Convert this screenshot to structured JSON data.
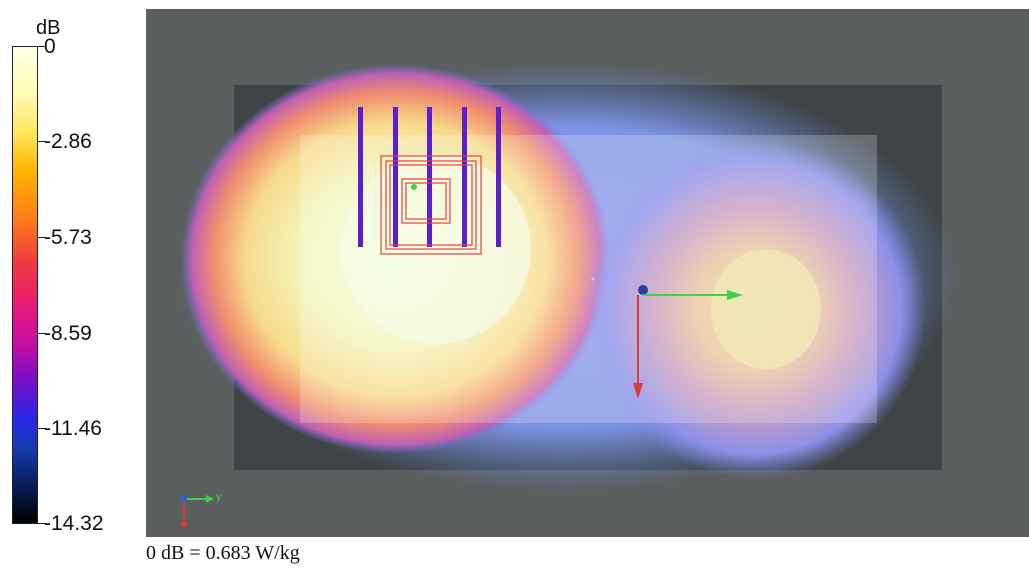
{
  "colorbar": {
    "unit": "dB",
    "ticks": [
      "0",
      "-2.86",
      "-5.73",
      "-8.59",
      "-11.46",
      "-14.32"
    ],
    "min": -14.32,
    "max": 0
  },
  "axes_triad": {
    "y_label": "y"
  },
  "footer": {
    "reference": "0 dB = 0.683 W/kg"
  },
  "colors": {
    "background_plate": "#5b5f60",
    "inner_plate": "#3f4446",
    "probe_bars": "#5a1fd0",
    "overlay_lines": "#e64040",
    "x_arrow": "#42d04a",
    "z_arrow": "#d83a3a"
  }
}
